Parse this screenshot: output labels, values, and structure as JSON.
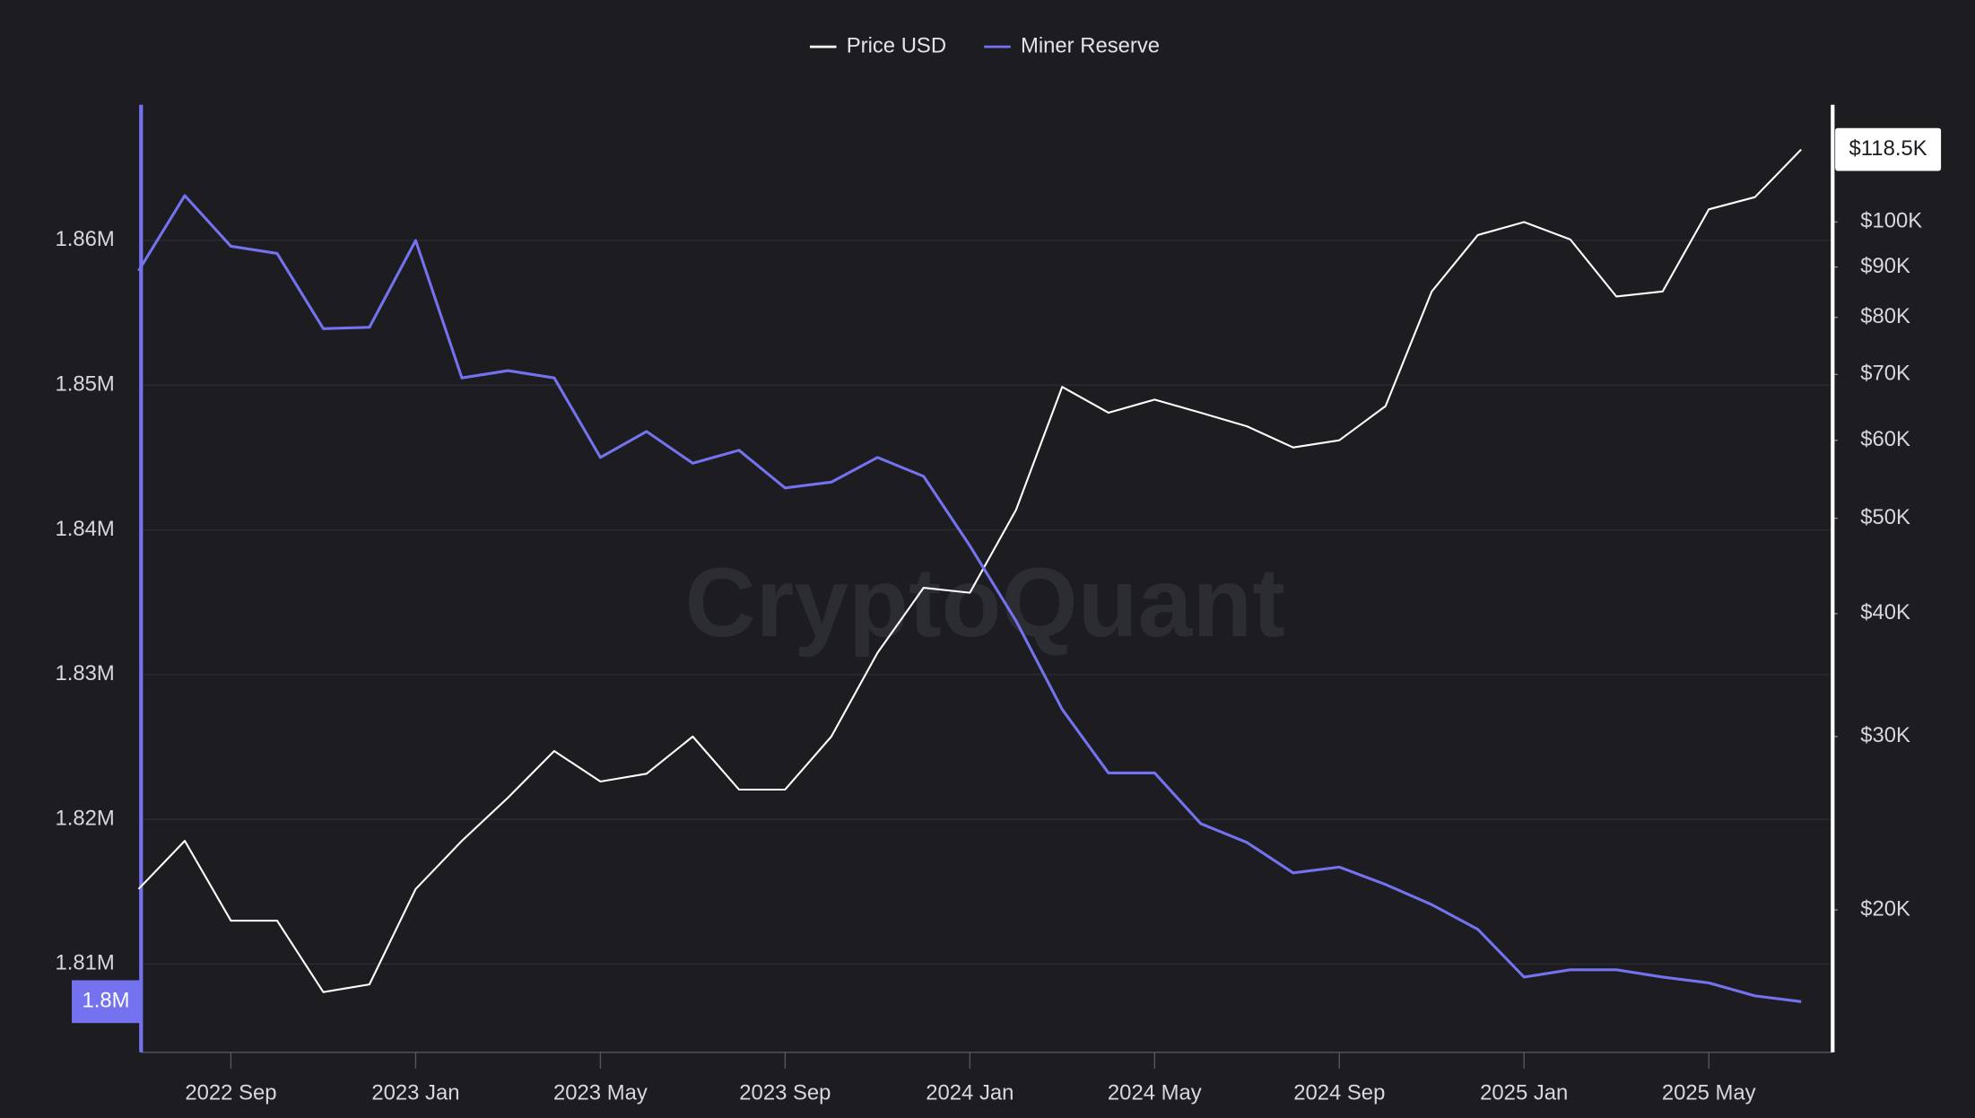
{
  "chart_data": {
    "type": "line",
    "watermark": "CryptoQuant",
    "x": [
      "2022-07",
      "2022-08",
      "2022-09",
      "2022-10",
      "2022-11",
      "2022-12",
      "2023-01",
      "2023-02",
      "2023-03",
      "2023-04",
      "2023-05",
      "2023-06",
      "2023-07",
      "2023-08",
      "2023-09",
      "2023-10",
      "2023-11",
      "2023-12",
      "2024-01",
      "2024-02",
      "2024-03",
      "2024-04",
      "2024-05",
      "2024-06",
      "2024-07",
      "2024-08",
      "2024-09",
      "2024-10",
      "2024-11",
      "2024-12",
      "2025-01",
      "2025-02",
      "2025-03",
      "2025-04",
      "2025-05",
      "2025-06",
      "2025-07"
    ],
    "xlim": [
      "2022-07",
      "2025-07"
    ],
    "xticks": [
      {
        "value": "2022-09",
        "label": "2022 Sep"
      },
      {
        "value": "2023-01",
        "label": "2023 Jan"
      },
      {
        "value": "2023-05",
        "label": "2023 May"
      },
      {
        "value": "2023-09",
        "label": "2023 Sep"
      },
      {
        "value": "2024-01",
        "label": "2024 Jan"
      },
      {
        "value": "2024-05",
        "label": "2024 May"
      },
      {
        "value": "2024-09",
        "label": "2024 Sep"
      },
      {
        "value": "2025-01",
        "label": "2025 Jan"
      },
      {
        "value": "2025-05",
        "label": "2025 May"
      }
    ],
    "ylim": [
      1803900,
      1869200
    ],
    "yticks": [
      {
        "value": 1810000,
        "label": "1.81M"
      },
      {
        "value": 1820000,
        "label": "1.82M"
      },
      {
        "value": 1830000,
        "label": "1.83M"
      },
      {
        "value": 1840000,
        "label": "1.84M"
      },
      {
        "value": 1850000,
        "label": "1.85M"
      },
      {
        "value": 1860000,
        "label": "1.86M"
      }
    ],
    "y2lim": [
      14330,
      130800
    ],
    "y2log": true,
    "y2ticks": [
      {
        "value": 20000,
        "label": "$20K"
      },
      {
        "value": 30000,
        "label": "$30K"
      },
      {
        "value": 40000,
        "label": "$40K"
      },
      {
        "value": 50000,
        "label": "$50K"
      },
      {
        "value": 60000,
        "label": "$60K"
      },
      {
        "value": 70000,
        "label": "$70K"
      },
      {
        "value": 80000,
        "label": "$80K"
      },
      {
        "value": 90000,
        "label": "$90K"
      },
      {
        "value": 100000,
        "label": "$100K"
      }
    ],
    "grid": true,
    "legend": "top",
    "series": [
      {
        "name": "Price USD",
        "color": "#ffffff",
        "axis": "y2",
        "values": [
          21000,
          23500,
          19500,
          19500,
          16500,
          16800,
          21000,
          23500,
          26000,
          29000,
          27000,
          27500,
          30000,
          26500,
          26500,
          30000,
          36500,
          42500,
          42000,
          51000,
          68000,
          64000,
          66000,
          64000,
          62000,
          59000,
          60000,
          65000,
          85000,
          97000,
          100000,
          96000,
          84000,
          85000,
          103000,
          106000,
          118500
        ],
        "value_labels": [
          null,
          null,
          null,
          null,
          null,
          null,
          null,
          null,
          null,
          null,
          null,
          null,
          null,
          null,
          null,
          null,
          null,
          null,
          null,
          null,
          null,
          null,
          null,
          null,
          null,
          null,
          null,
          null,
          null,
          null,
          null,
          null,
          null,
          null,
          null,
          null,
          "$118.5K"
        ]
      },
      {
        "name": "Miner Reserve",
        "color": "#7472ee",
        "values": [
          1857900,
          1863100,
          1859600,
          1859100,
          1853900,
          1854000,
          1860000,
          1850500,
          1851000,
          1850500,
          1845000,
          1846800,
          1844600,
          1845500,
          1842900,
          1843300,
          1845000,
          1843700,
          1838900,
          1833700,
          1827600,
          1823200,
          1823200,
          1819700,
          1818400,
          1816300,
          1816700,
          1815500,
          1814100,
          1812400,
          1809100,
          1809600,
          1809600,
          1809100,
          1808700,
          1807800,
          1807400
        ],
        "value_labels": [
          null,
          null,
          null,
          null,
          null,
          null,
          null,
          null,
          null,
          null,
          null,
          null,
          null,
          null,
          null,
          null,
          null,
          null,
          null,
          null,
          null,
          null,
          null,
          null,
          null,
          null,
          null,
          null,
          null,
          null,
          null,
          null,
          null,
          null,
          null,
          null,
          "1.8M"
        ]
      }
    ]
  }
}
